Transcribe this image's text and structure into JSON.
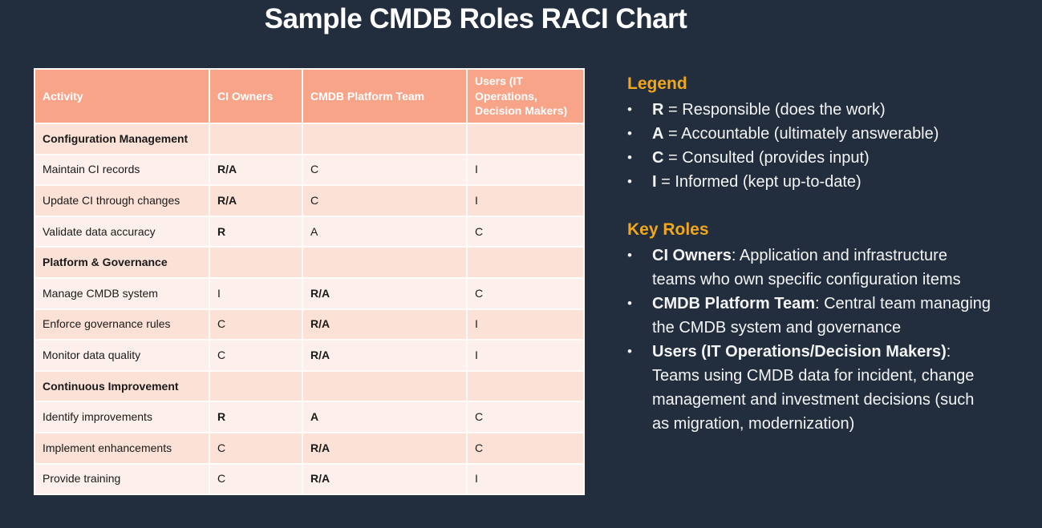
{
  "title": "Sample CMDB Roles RACI Chart",
  "table": {
    "headers": [
      "Activity",
      "CI Owners",
      "CMDB Platform Team",
      "Users (IT Operations, Decision Makers)"
    ],
    "rows": [
      {
        "activity": "Configuration Management",
        "section": true,
        "ci_owners": "",
        "platform": "",
        "users": "",
        "bold": []
      },
      {
        "activity": "Maintain CI records",
        "section": false,
        "ci_owners": "R/A",
        "platform": "C",
        "users": "I",
        "bold": [
          "ci_owners"
        ]
      },
      {
        "activity": "Update CI through changes",
        "section": false,
        "ci_owners": "R/A",
        "platform": "C",
        "users": "I",
        "bold": [
          "ci_owners"
        ]
      },
      {
        "activity": "Validate data accuracy",
        "section": false,
        "ci_owners": "R",
        "platform": "A",
        "users": "C",
        "bold": [
          "ci_owners"
        ]
      },
      {
        "activity": "Platform & Governance",
        "section": true,
        "ci_owners": "",
        "platform": "",
        "users": "",
        "bold": []
      },
      {
        "activity": "Manage CMDB system",
        "section": false,
        "ci_owners": "I",
        "platform": "R/A",
        "users": "C",
        "bold": [
          "platform"
        ]
      },
      {
        "activity": "Enforce governance rules",
        "section": false,
        "ci_owners": "C",
        "platform": "R/A",
        "users": "I",
        "bold": [
          "platform"
        ]
      },
      {
        "activity": "Monitor data quality",
        "section": false,
        "ci_owners": "C",
        "platform": "R/A",
        "users": "I",
        "bold": [
          "platform"
        ]
      },
      {
        "activity": "Continuous Improvement",
        "section": true,
        "ci_owners": "",
        "platform": "",
        "users": "",
        "bold": []
      },
      {
        "activity": "Identify improvements",
        "section": false,
        "ci_owners": "R",
        "platform": "A",
        "users": "C",
        "bold": [
          "ci_owners",
          "platform"
        ]
      },
      {
        "activity": "Implement enhancements",
        "section": false,
        "ci_owners": "C",
        "platform": "R/A",
        "users": "C",
        "bold": [
          "platform"
        ]
      },
      {
        "activity": "Provide training",
        "section": false,
        "ci_owners": "C",
        "platform": "R/A",
        "users": "I",
        "bold": [
          "platform"
        ]
      }
    ]
  },
  "legend": {
    "heading": "Legend",
    "items": [
      {
        "key": "R",
        "rest": " = Responsible (does the work)"
      },
      {
        "key": "A",
        "rest": " = Accountable (ultimately answerable)"
      },
      {
        "key": "C",
        "rest": " = Consulted (provides input)"
      },
      {
        "key": "I",
        "rest": " = Informed (kept up-to-date)"
      }
    ]
  },
  "key_roles": {
    "heading": "Key Roles",
    "items": [
      {
        "term": "CI Owners",
        "desc": ": Application and infrastructure teams who own specific configuration items"
      },
      {
        "term": "CMDB Platform Team",
        "desc": ": Central team managing the CMDB system and governance"
      },
      {
        "term": "Users (IT Operations/Decision Makers)",
        "desc": ": Teams using CMDB data for incident, change management and investment decisions (such as migration, modernization)"
      }
    ]
  },
  "bullet_char": "•",
  "colors": {
    "background": "#222E3E",
    "table_header_bg": "#F8A489",
    "row_stripe_dark": "#FCE1D7",
    "row_stripe_light": "#FDF0EC",
    "gridline": "#FEFBFA",
    "heading_accent": "#F2A71B",
    "table_text": "#1A1A1A",
    "title_text": "#FFFFFF"
  }
}
